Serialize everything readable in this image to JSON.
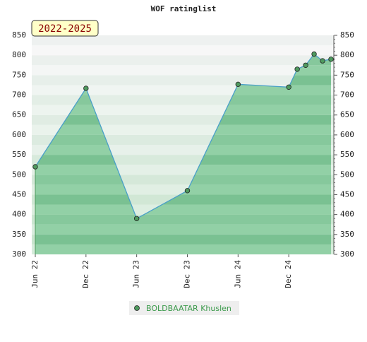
{
  "title": "WOF ratinglist",
  "badge": "2022-2025",
  "chart_data": {
    "type": "area",
    "x": [
      "2022-06",
      "2022-12",
      "2023-06",
      "2023-12",
      "2024-06",
      "2024-12",
      "2025-01",
      "2025-02",
      "2025-03",
      "2025-04",
      "2025-05"
    ],
    "series": [
      {
        "name": "BOLDBAATAR Khuslen",
        "color": "#4aa0c8",
        "values": [
          520,
          717,
          390,
          460,
          727,
          720,
          765,
          775,
          803,
          786,
          790
        ]
      }
    ],
    "xlim": [
      "2022-06",
      "2025-05"
    ],
    "xticks": [
      {
        "value": "2022-06",
        "label": "Jun 22"
      },
      {
        "value": "2022-12",
        "label": "Dec 22"
      },
      {
        "value": "2023-06",
        "label": "Jun 23"
      },
      {
        "value": "2023-12",
        "label": "Dec 23"
      },
      {
        "value": "2024-06",
        "label": "Jun 24"
      },
      {
        "value": "2024-12",
        "label": "Dec 24"
      }
    ],
    "ylim": [
      300,
      850
    ],
    "yticks": [
      300,
      350,
      400,
      450,
      500,
      550,
      600,
      650,
      700,
      750,
      800,
      850
    ]
  }
}
